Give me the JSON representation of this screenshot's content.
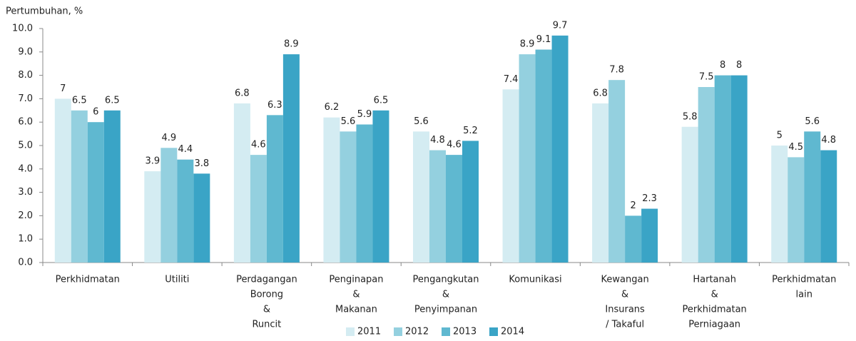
{
  "chart_data": {
    "type": "bar",
    "y_axis_label": "Pertumbuhan, %",
    "categories": [
      [
        "Perkhidmatan"
      ],
      [
        "Utiliti"
      ],
      [
        "Perdagangan",
        "Borong",
        "&",
        "Runcit"
      ],
      [
        "Penginapan",
        "&",
        "Makanan"
      ],
      [
        "Pengangkutan",
        "&",
        "Penyimpanan"
      ],
      [
        "Komunikasi"
      ],
      [
        "Kewangan",
        "&",
        "Insurans",
        "/ Takaful"
      ],
      [
        "Hartanah",
        "&",
        "Perkhidmatan",
        "Perniagaan"
      ],
      [
        "Perkhidmatan",
        "lain"
      ]
    ],
    "series": [
      {
        "name": "2011",
        "color": "#d4ecf2",
        "values": [
          7,
          3.9,
          6.8,
          6.2,
          5.6,
          7.4,
          6.8,
          5.8,
          5
        ]
      },
      {
        "name": "2012",
        "color": "#94d0df",
        "values": [
          6.5,
          4.9,
          4.6,
          5.6,
          4.8,
          8.9,
          7.8,
          7.5,
          4.5
        ]
      },
      {
        "name": "2013",
        "color": "#5fb8d0",
        "values": [
          6,
          4.4,
          6.3,
          5.9,
          4.6,
          9.1,
          2,
          8,
          5.6
        ]
      },
      {
        "name": "2014",
        "color": "#3aa4c6",
        "values": [
          6.5,
          3.8,
          8.9,
          6.5,
          5.2,
          9.7,
          2.3,
          8,
          4.8
        ]
      }
    ],
    "ylim": [
      0,
      10
    ],
    "yticks": [
      {
        "value": 0,
        "label": "0.0"
      },
      {
        "value": 1,
        "label": "1.0"
      },
      {
        "value": 2,
        "label": "2.0"
      },
      {
        "value": 3,
        "label": "3.0"
      },
      {
        "value": 4,
        "label": "4.0"
      },
      {
        "value": 5,
        "label": "5.0"
      },
      {
        "value": 6,
        "label": "6.0"
      },
      {
        "value": 7,
        "label": "7.0"
      },
      {
        "value": 8,
        "label": "8.0"
      },
      {
        "value": 9,
        "label": "9.0"
      },
      {
        "value": 10,
        "label": "10.0"
      }
    ],
    "grid": false,
    "legend": "bottom"
  }
}
